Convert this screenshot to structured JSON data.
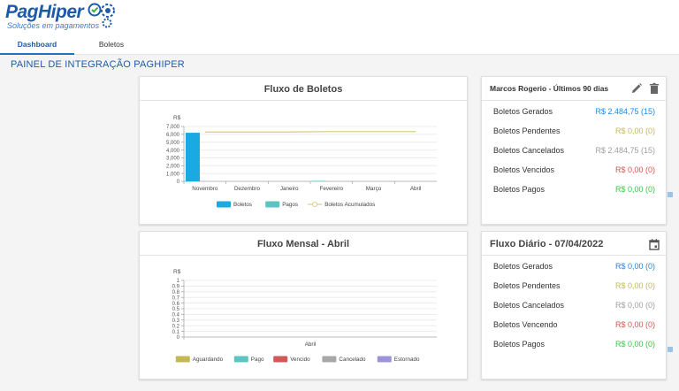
{
  "brand": {
    "name": "PagHiper",
    "tagline": "Soluções em pagamentos"
  },
  "nav": {
    "tabs": [
      {
        "label": "Dashboard",
        "active": true
      },
      {
        "label": "Boletos",
        "active": false
      }
    ]
  },
  "page_title": "PAINEL DE INTEGRAÇÃO PAGHIPER",
  "chart_boletos": {
    "title": "Fluxo de Boletos",
    "unit": "R$"
  },
  "chart_mensal": {
    "title": "Fluxo Mensal - Abril",
    "unit": "R$"
  },
  "chart_data": [
    {
      "type": "bar",
      "title": "Fluxo de Boletos",
      "ylabel": "R$",
      "categories": [
        "Novembro",
        "Dezembro",
        "Janeiro",
        "Fevereiro",
        "Março",
        "Abril"
      ],
      "ylim": [
        0,
        7000
      ],
      "yticks": [
        "0",
        "1,000",
        "2,000",
        "3,000",
        "4,000",
        "5,000",
        "6,000",
        "7,000"
      ],
      "series": [
        {
          "name": "Boletos",
          "kind": "bar",
          "color": "#1aa9e0",
          "values": [
            6200,
            0,
            0,
            30,
            0,
            0
          ]
        },
        {
          "name": "Pagos",
          "kind": "bar",
          "color": "#5cc5c2",
          "values": [
            0,
            0,
            0,
            0,
            0,
            0
          ]
        },
        {
          "name": "Boletos Acumulados",
          "kind": "line",
          "color": "#d8cf8a",
          "values": [
            6300,
            6300,
            6300,
            6350,
            6350,
            6350
          ]
        }
      ],
      "legend_position": "bottom"
    },
    {
      "type": "bar",
      "title": "Fluxo Mensal - Abril",
      "ylabel": "R$",
      "categories": [
        "Abril"
      ],
      "ylim": [
        0,
        1
      ],
      "yticks": [
        "0",
        "0.1",
        "0.2",
        "0.3",
        "0.4",
        "0.5",
        "0.6",
        "0.7",
        "0.8",
        "0.9",
        "1"
      ],
      "series": [
        {
          "name": "Aguardando",
          "color": "#c4b856",
          "values": [
            0
          ]
        },
        {
          "name": "Pago",
          "color": "#5cc5c2",
          "values": [
            0
          ]
        },
        {
          "name": "Vencido",
          "color": "#d05a5a",
          "values": [
            0
          ]
        },
        {
          "name": "Cancelado",
          "color": "#a8a8a8",
          "values": [
            0
          ]
        },
        {
          "name": "Estornado",
          "color": "#9b95d8",
          "values": [
            0
          ]
        }
      ],
      "legend_position": "bottom"
    }
  ],
  "stats_90": {
    "title": "Marcos Rogerio - Últimos 90 dias",
    "rows": [
      {
        "label": "Boletos Gerados",
        "value": "R$ 2.484,75 (15)",
        "color": "#1e88e5"
      },
      {
        "label": "Boletos Pendentes",
        "value": "R$ 0,00 (0)",
        "color": "#c4b856"
      },
      {
        "label": "Boletos Cancelados",
        "value": "R$ 2.484,75 (15)",
        "color": "#9e9e9e"
      },
      {
        "label": "Boletos Vencidos",
        "value": "R$ 0,00 (0)",
        "color": "#d9534f"
      },
      {
        "label": "Boletos Pagos",
        "value": "R$ 0,00 (0)",
        "color": "#2ecc40"
      }
    ]
  },
  "stats_daily": {
    "title": "Fluxo Diário - 07/04/2022",
    "rows": [
      {
        "label": "Boletos Gerados",
        "value": "R$ 0,00 (0)",
        "color": "#1e88e5"
      },
      {
        "label": "Boletos Pendentes",
        "value": "R$ 0,00 (0)",
        "color": "#c4b856"
      },
      {
        "label": "Boletos Cancelados",
        "value": "R$ 0,00 (0)",
        "color": "#9e9e9e"
      },
      {
        "label": "Boletos Vencendo",
        "value": "R$ 0,00 (0)",
        "color": "#d9534f"
      },
      {
        "label": "Boletos Pagos",
        "value": "R$ 0,00 (0)",
        "color": "#2ecc40"
      }
    ]
  },
  "icons": {
    "edit": "pencil-icon",
    "delete": "trash-icon",
    "calendar": "calendar-icon"
  }
}
